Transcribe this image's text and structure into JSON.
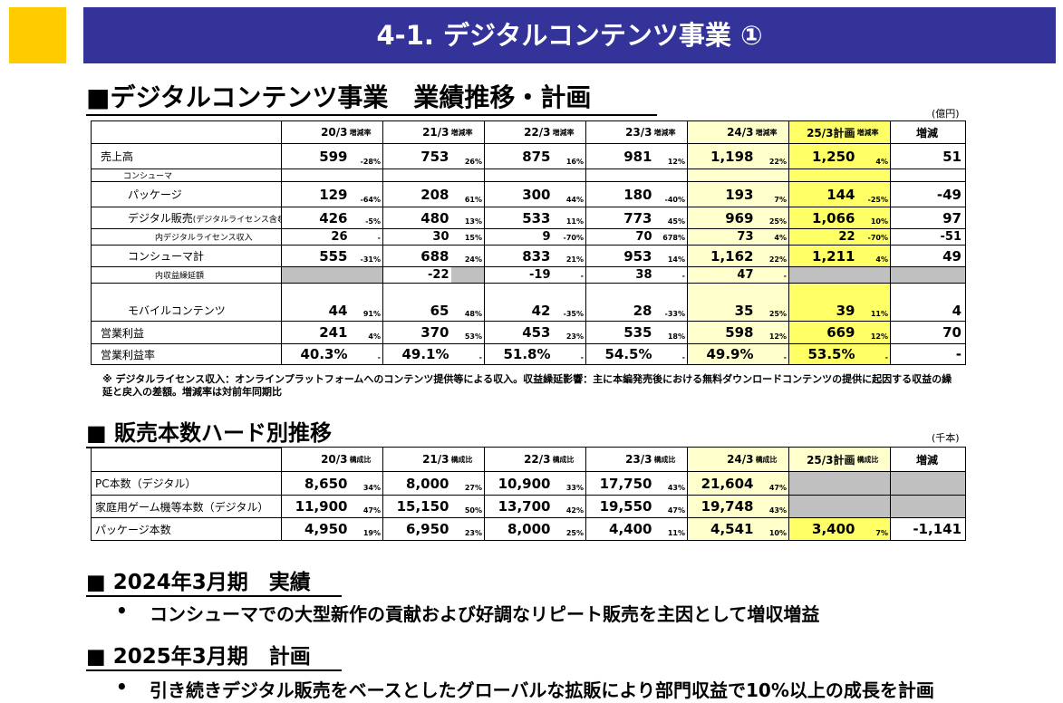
{
  "header": {
    "title": "4-1.  デジタルコンテンツ事業 ①"
  },
  "section1": {
    "heading": "■デジタルコンテンツ事業　業績推移・計画",
    "unit": "(億円)",
    "table": {
      "periods": [
        "20/3",
        "21/3",
        "22/3",
        "23/3",
        "24/3",
        "25/3計画"
      ],
      "sub": "増減率",
      "change_header": "増減",
      "rows": [
        {
          "label": "売上高",
          "cells": [
            [
              "599",
              "-28%"
            ],
            [
              "753",
              "26%"
            ],
            [
              "875",
              "16%"
            ],
            [
              "981",
              "12%"
            ],
            [
              "1,198",
              "22%"
            ],
            [
              "1,250",
              "4%"
            ]
          ],
          "change": "51"
        },
        {
          "label": "コンシューマ"
        },
        {
          "label": "パッケージ",
          "cells": [
            [
              "129",
              "-64%"
            ],
            [
              "208",
              "61%"
            ],
            [
              "300",
              "44%"
            ],
            [
              "180",
              "-40%"
            ],
            [
              "193",
              "7%"
            ],
            [
              "144",
              "-25%"
            ]
          ],
          "change": "-49"
        },
        {
          "label": "デジタル販売",
          "label_note": "(デジタルライセンス含む)",
          "cells": [
            [
              "426",
              "-5%"
            ],
            [
              "480",
              "13%"
            ],
            [
              "533",
              "11%"
            ],
            [
              "773",
              "45%"
            ],
            [
              "969",
              "25%"
            ],
            [
              "1,066",
              "10%"
            ]
          ],
          "change": "97"
        },
        {
          "label": "内デジタルライセンス収入",
          "cells": [
            [
              "26",
              "-"
            ],
            [
              "30",
              "15%"
            ],
            [
              "9",
              "-70%"
            ],
            [
              "70",
              "678%"
            ],
            [
              "73",
              "4%"
            ],
            [
              "22",
              "-70%"
            ]
          ],
          "change": "-51"
        },
        {
          "label": "コンシューマ計",
          "cells": [
            [
              "555",
              "-31%"
            ],
            [
              "688",
              "24%"
            ],
            [
              "833",
              "21%"
            ],
            [
              "953",
              "14%"
            ],
            [
              "1,162",
              "22%"
            ],
            [
              "1,211",
              "4%"
            ]
          ],
          "change": "49"
        },
        {
          "label": "内収益繰延額",
          "cells": [
            [
              null,
              null
            ],
            [
              "-22",
              null
            ],
            [
              "-19",
              "-"
            ],
            [
              "38",
              "-"
            ],
            [
              "47",
              "-"
            ],
            [
              null,
              null
            ]
          ],
          "change": null
        },
        {
          "label": "モバイルコンテンツ",
          "cells": [
            [
              "44",
              "91%"
            ],
            [
              "65",
              "48%"
            ],
            [
              "42",
              "-35%"
            ],
            [
              "28",
              "-33%"
            ],
            [
              "35",
              "25%"
            ],
            [
              "39",
              "11%"
            ]
          ],
          "change": "4"
        },
        {
          "label": "営業利益",
          "cells": [
            [
              "241",
              "4%"
            ],
            [
              "370",
              "53%"
            ],
            [
              "453",
              "23%"
            ],
            [
              "535",
              "18%"
            ],
            [
              "598",
              "12%"
            ],
            [
              "669",
              "12%"
            ]
          ],
          "change": "70"
        },
        {
          "label": "営業利益率",
          "cells": [
            [
              "40.3%",
              "-"
            ],
            [
              "49.1%",
              "-"
            ],
            [
              "51.8%",
              "-"
            ],
            [
              "54.5%",
              "-"
            ],
            [
              "49.9%",
              "-"
            ],
            [
              "53.5%",
              "-"
            ]
          ],
          "change": "-"
        }
      ]
    },
    "footnote": "※ デジタルライセンス収入：オンラインプラットフォームへのコンテンツ提供等による収入。収益繰延影響：主に本編発売後における無料ダウンロードコンテンツの提供に起因する収益の繰延と戻入の差額。増減率は対前年同期比"
  },
  "section2": {
    "heading": "■ 販売本数ハード別推移",
    "unit": "(千本)",
    "table": {
      "periods": [
        "20/3",
        "21/3",
        "22/3",
        "23/3",
        "24/3",
        "25/3計画"
      ],
      "sub": "構成比",
      "change_header": "増減",
      "rows": [
        {
          "label": "PC本数（デジタル）",
          "cells": [
            [
              "8,650",
              "34%"
            ],
            [
              "8,000",
              "27%"
            ],
            [
              "10,900",
              "33%"
            ],
            [
              "17,750",
              "43%"
            ],
            [
              "21,604",
              "47%"
            ],
            [
              null,
              null
            ]
          ],
          "change": null
        },
        {
          "label": "家庭用ゲーム機等本数（デジタル）",
          "cells": [
            [
              "11,900",
              "47%"
            ],
            [
              "15,150",
              "50%"
            ],
            [
              "13,700",
              "42%"
            ],
            [
              "19,550",
              "47%"
            ],
            [
              "19,748",
              "43%"
            ],
            [
              null,
              null
            ]
          ],
          "change": null
        },
        {
          "label": "パッケージ本数",
          "cells": [
            [
              "4,950",
              "19%"
            ],
            [
              "6,950",
              "23%"
            ],
            [
              "8,000",
              "25%"
            ],
            [
              "4,400",
              "11%"
            ],
            [
              "4,541",
              "10%"
            ],
            [
              "3,400",
              "7%"
            ]
          ],
          "change": "-1,141"
        }
      ]
    }
  },
  "section3": {
    "heading": "■ 2024年3月期　実績",
    "bullet": "コンシューマでの大型新作の貢献および好調なリピート販売を主因として増収増益"
  },
  "section4": {
    "heading": "■ 2025年3月期　計画",
    "bullet": "引き続きデジタル販売をベースとしたグローバルな拡販により部門収益で10%以上の成長を計画"
  }
}
